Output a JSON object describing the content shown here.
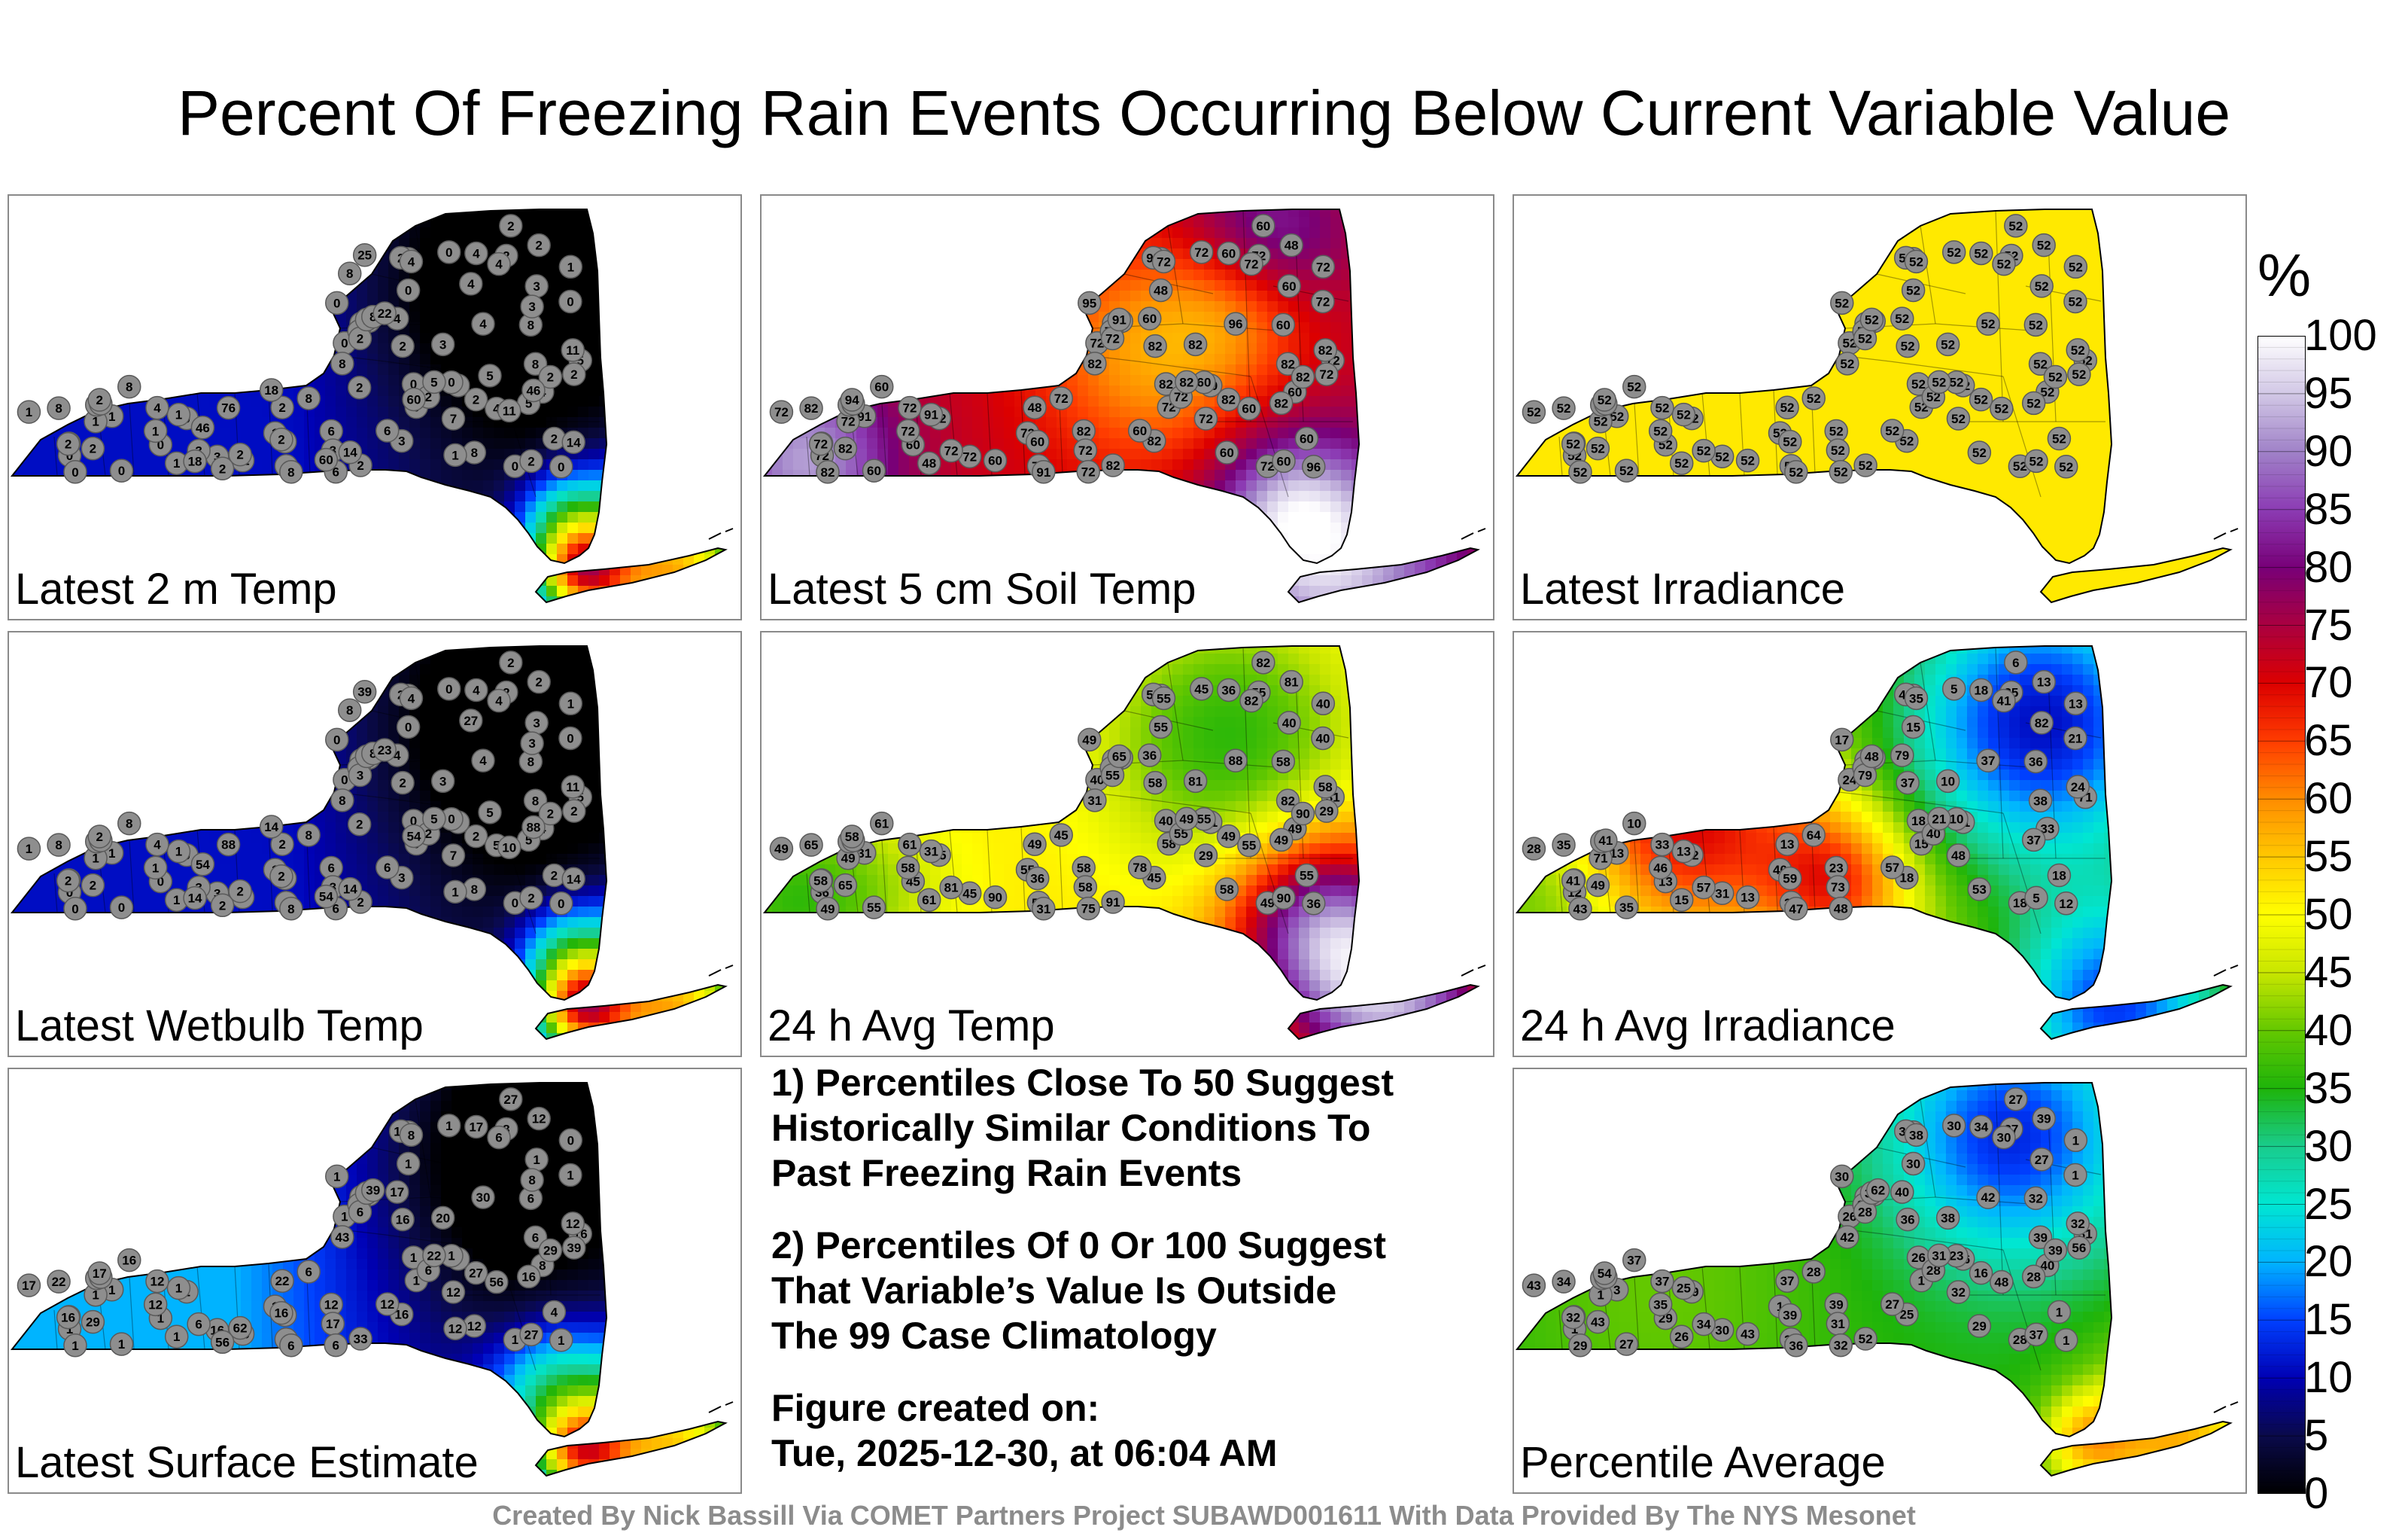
{
  "title": "Percent Of Freezing Rain Events Occurring Below Current Variable Value",
  "panels": [
    {
      "label": "Latest 2 m Temp",
      "field": "cold",
      "values": [
        "0",
        "0",
        "0",
        "1",
        "0",
        "0",
        "1",
        "0",
        "0",
        "0",
        "1",
        "0",
        "0",
        "1",
        "0",
        "0",
        "0",
        "1",
        "0",
        "1",
        "0",
        "2",
        "0",
        "0",
        "1",
        "2",
        "0",
        "0",
        "2",
        "1",
        "3",
        "2",
        "3",
        "1",
        "6",
        "2",
        "4",
        "1",
        "2",
        "3",
        "5",
        "2",
        "3",
        "2",
        "2",
        "4",
        "2",
        "8",
        "8",
        "8",
        "6",
        "6",
        "5",
        "4",
        "7",
        "5",
        "8",
        "2",
        "4",
        "11",
        "8",
        "4",
        "3",
        "2",
        "4",
        "8",
        "8",
        "2",
        "4",
        "2",
        "3",
        "2",
        "11",
        "4",
        "6",
        "2",
        "2",
        "2",
        "2",
        "2",
        "8",
        "4",
        "8",
        "2",
        "1",
        "2",
        "3",
        "2",
        "5",
        "8",
        "2",
        "18",
        "14",
        "11",
        "14",
        "22",
        "18",
        "25",
        "60",
        "60",
        "46",
        "46",
        "76",
        "4"
      ]
    },
    {
      "label": "Latest 5 cm Soil Temp",
      "field": "hot",
      "values": [
        "82",
        "60",
        "72",
        "60",
        "72",
        "96",
        "72",
        "48",
        "60",
        "95",
        "91",
        "72",
        "60",
        "72",
        "60",
        "82",
        "72",
        "72",
        "72",
        "91",
        "72",
        "60",
        "60",
        "72",
        "48",
        "72",
        "82",
        "60",
        "72",
        "72",
        "60",
        "72",
        "82",
        "72",
        "82",
        "72",
        "60",
        "72",
        "48",
        "72",
        "82",
        "72",
        "72",
        "82",
        "82",
        "60",
        "72",
        "60",
        "72",
        "60",
        "72",
        "60",
        "72",
        "60",
        "72",
        "82",
        "91",
        "95",
        "72",
        "82",
        "60",
        "72",
        "72",
        "91",
        "72",
        "82",
        "82",
        "48",
        "60",
        "60",
        "82",
        "60",
        "60",
        "96",
        "60",
        "82",
        "82",
        "82",
        "94",
        "72",
        "82",
        "60"
      ]
    },
    {
      "label": "Latest Irradiance",
      "field": "flat",
      "values": [
        "52",
        "52",
        "52",
        "52",
        "52",
        "52",
        "52",
        "52",
        "52",
        "52",
        "52",
        "52",
        "52",
        "52",
        "52",
        "52",
        "52",
        "52",
        "52",
        "52",
        "52",
        "52",
        "52",
        "52",
        "52",
        "52",
        "52",
        "52",
        "52",
        "52",
        "52",
        "52",
        "52",
        "52",
        "52",
        "52",
        "52",
        "52",
        "52",
        "52",
        "52",
        "52",
        "52",
        "52",
        "52",
        "52",
        "52",
        "52",
        "52",
        "52",
        "52",
        "52",
        "52",
        "52",
        "52",
        "52",
        "52",
        "52",
        "52",
        "52",
        "52",
        "52",
        "52",
        "52",
        "52",
        "52",
        "52",
        "52",
        "52",
        "52",
        "52",
        "52",
        "52",
        "52",
        "52",
        "52",
        "52",
        "52",
        "52",
        "52",
        "52",
        "52"
      ]
    },
    {
      "label": "Latest Wetbulb Temp",
      "field": "cold",
      "values": [
        "0",
        "0",
        "0",
        "1",
        "0",
        "0",
        "1",
        "0",
        "0",
        "0",
        "1",
        "0",
        "0",
        "1",
        "0",
        "0",
        "0",
        "1",
        "0",
        "1",
        "0",
        "2",
        "0",
        "0",
        "1",
        "2",
        "0",
        "0",
        "3",
        "1",
        "3",
        "2",
        "3",
        "1",
        "6",
        "2",
        "4",
        "1",
        "2",
        "3",
        "5",
        "2",
        "3",
        "2",
        "2",
        "4",
        "2",
        "8",
        "8",
        "8",
        "6",
        "6",
        "5",
        "4",
        "7",
        "5",
        "8",
        "2",
        "4",
        "11",
        "8",
        "4",
        "3",
        "2",
        "4",
        "8",
        "8",
        "2",
        "10",
        "2",
        "3",
        "2",
        "5",
        "4",
        "6",
        "2",
        "2",
        "2",
        "2",
        "2",
        "8",
        "5",
        "8",
        "2",
        "1",
        "2",
        "3",
        "2",
        "5",
        "8",
        "2",
        "14",
        "14",
        "10",
        "14",
        "23",
        "14",
        "39",
        "54",
        "54",
        "54",
        "88",
        "88",
        "27"
      ]
    },
    {
      "label": "24 h Avg Temp",
      "field": "avgtemp",
      "values": [
        "49",
        "55",
        "55",
        "65",
        "40",
        "36",
        "40",
        "55",
        "55",
        "49",
        "31",
        "36",
        "45",
        "31",
        "61",
        "40",
        "40",
        "55",
        "45",
        "31",
        "49",
        "55",
        "55",
        "58",
        "61",
        "49",
        "49",
        "36",
        "55",
        "49",
        "40",
        "55",
        "45",
        "58",
        "58",
        "55",
        "36",
        "49",
        "49",
        "45",
        "49",
        "58",
        "58",
        "65",
        "58",
        "49",
        "55",
        "58",
        "45",
        "58",
        "75",
        "78",
        "31",
        "36",
        "29",
        "49",
        "31",
        "55",
        "55",
        "58",
        "61",
        "61",
        "81",
        "65",
        "82",
        "82",
        "65",
        "81",
        "75",
        "82",
        "81",
        "90",
        "90",
        "88",
        "90",
        "91",
        "90",
        "49",
        "58",
        "29",
        "31",
        "55"
      ]
    },
    {
      "label": "24 h Avg Irradiance",
      "field": "irr",
      "values": [
        "15",
        "13",
        "12",
        "15",
        "24",
        "12",
        "13",
        "15",
        "35",
        "17",
        "13",
        "12",
        "13",
        "21",
        "21",
        "18",
        "21",
        "40",
        "5",
        "13",
        "18",
        "18",
        "10",
        "15",
        "15",
        "48",
        "43",
        "59",
        "79",
        "71",
        "82",
        "40",
        "18",
        "46",
        "23",
        "35",
        "18",
        "28",
        "13",
        "31",
        "21",
        "41",
        "73",
        "49",
        "37",
        "33",
        "34",
        "36",
        "64",
        "53",
        "48",
        "57",
        "71",
        "79",
        "48",
        "37",
        "47",
        "46",
        "35",
        "24",
        "10",
        "33",
        "57",
        "48",
        "41",
        "38",
        "35",
        "13",
        "5",
        "6",
        "10",
        "5",
        "13",
        "37",
        "41"
      ]
    },
    {
      "label": "Latest Surface Estimate",
      "field": "cold2",
      "values": [
        "1",
        "1",
        "1",
        "1",
        "1",
        "1",
        "0",
        "1",
        "1",
        "1",
        "1",
        "1",
        "1",
        "6",
        "3",
        "1",
        "1",
        "1",
        "1",
        "1",
        "1",
        "4",
        "1",
        "1",
        "1",
        "1",
        "1",
        "1",
        "6",
        "1",
        "1",
        "6",
        "16",
        "12",
        "12",
        "8",
        "17",
        "17",
        "22",
        "16",
        "22",
        "16",
        "17",
        "29",
        "16",
        "8",
        "8",
        "6",
        "6",
        "12",
        "6",
        "12",
        "16",
        "17",
        "12",
        "16",
        "6",
        "12",
        "8",
        "12",
        "16",
        "12",
        "6",
        "8",
        "6",
        "6",
        "22",
        "12",
        "6",
        "27",
        "20",
        "27",
        "30",
        "30",
        "33",
        "33",
        "29",
        "27",
        "17",
        "39",
        "43",
        "56",
        "39",
        "62",
        "12",
        "16",
        "8",
        "56"
      ]
    },
    {
      "label": "Percentile Average",
      "field": "avg",
      "values": [
        "27",
        "1",
        "29",
        "27",
        "26",
        "1",
        "1",
        "30",
        "27",
        "30",
        "3",
        "1",
        "29",
        "25",
        "26",
        "26",
        "1",
        "1",
        "30",
        "25",
        "28",
        "1",
        "23",
        "1",
        "26",
        "26",
        "29",
        "39",
        "28",
        "1",
        "27",
        "28",
        "25",
        "35",
        "39",
        "37",
        "34",
        "43",
        "37",
        "30",
        "31",
        "32",
        "31",
        "43",
        "36",
        "40",
        "32",
        "32",
        "28",
        "29",
        "32",
        "27",
        "31",
        "40",
        "32",
        "28",
        "36",
        "34",
        "38",
        "32",
        "37",
        "37",
        "34",
        "35",
        "30",
        "39",
        "34",
        "39",
        "36",
        "27",
        "38",
        "37",
        "43",
        "42",
        "47",
        "52",
        "39",
        "16",
        "54",
        "56",
        "42",
        "48",
        "62"
      ]
    }
  ],
  "notes": {
    "note1_lines": [
      "1) Percentiles Close To 50 Suggest",
      "Historically Similar Conditions To",
      "Past Freezing Rain Events"
    ],
    "note2_lines": [
      "2) Percentiles Of 0 Or 100 Suggest",
      "That Variable’s Value Is Outside",
      "The 99 Case Climatology"
    ],
    "created_lines": [
      "Figure created on:",
      "Tue, 2025-12-30, at 06:04 AM"
    ]
  },
  "footer": "Created By Nick Bassill Via COMET Partners Project SUBAWD001611 With Data Provided By The NYS Mesonet",
  "colorbar": {
    "unit": "%",
    "ticks": [
      "100",
      "95",
      "90",
      "85",
      "80",
      "75",
      "70",
      "65",
      "60",
      "55",
      "50",
      "45",
      "40",
      "35",
      "30",
      "25",
      "20",
      "15",
      "10",
      "5",
      "0"
    ],
    "scale": [
      "#000000",
      "#0a0a4a",
      "#0000b4",
      "#0040ff",
      "#00b4ff",
      "#00e6d2",
      "#19cc8c",
      "#1eb40a",
      "#64c800",
      "#c8e600",
      "#ffff00",
      "#ffc800",
      "#ff8c00",
      "#ff3c00",
      "#dc0000",
      "#aa0040",
      "#780078",
      "#8c3cb4",
      "#a082c8",
      "#d2c8e6",
      "#ffffff"
    ]
  }
}
